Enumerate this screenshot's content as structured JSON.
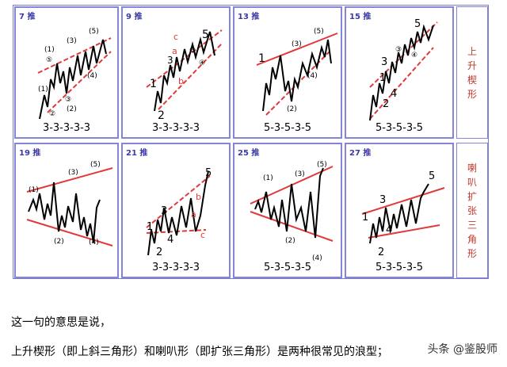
{
  "panels": [
    {
      "label": "7 推",
      "sequence": "3-3-3-3-3"
    },
    {
      "label": "9 推",
      "sequence": "3-3-3-3-3"
    },
    {
      "label": "13 推",
      "sequence": "5-3-5-3-5"
    },
    {
      "label": "15 推",
      "sequence": "5-3-5-3-5"
    },
    {
      "label": "19 推",
      "sequence": ""
    },
    {
      "label": "21 推",
      "sequence": "3-3-3-3-3"
    },
    {
      "label": "25 推",
      "sequence": "5-3-5-3-5"
    },
    {
      "label": "27 推",
      "sequence": "5-3-5-3-5"
    }
  ],
  "side_labels": {
    "top": "上升楔形",
    "bottom": "喇叭扩张三角形"
  },
  "captions": {
    "line1": "这一句的意思是说，",
    "line2": "上升楔形（即上斜三角形）和喇叭形（即扩张三角形）是两种很常见的浪型；"
  },
  "watermark": "头条 @鉴股师",
  "wave_labels": {
    "big": [
      "1",
      "2",
      "3",
      "4",
      "5"
    ],
    "minor": [
      "(1)",
      "(2)",
      "(3)",
      "(4)",
      "(5)"
    ],
    "circled": [
      "①",
      "②",
      "③",
      "④",
      "⑤"
    ],
    "abc": [
      "a",
      "b",
      "c"
    ]
  },
  "colors": {
    "panel_border": "#8484d8",
    "trend_line": "#e03a3a",
    "side_text": "#c0392b",
    "label_text": "#3a3aa8"
  }
}
